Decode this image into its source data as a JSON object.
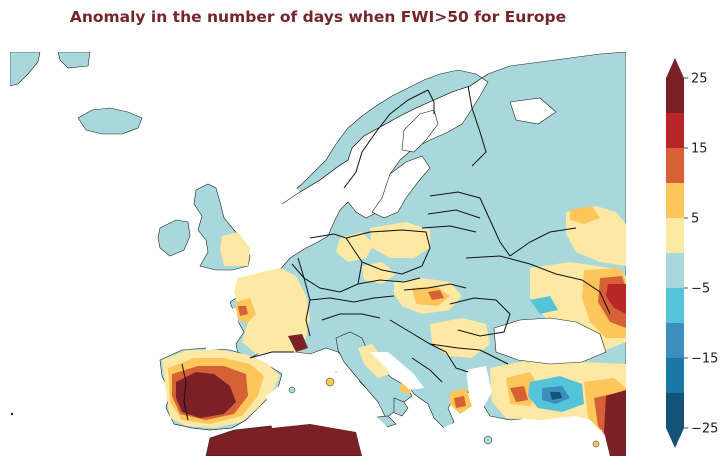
{
  "title": "Anomaly in the number of days when FWI>50 for Europe",
  "title_color": "#74262b",
  "colors": {
    "sea": "#ffffff",
    "land_neutral": "#a8d8dc",
    "border": "#111111"
  },
  "colorbar": {
    "extend": "both",
    "tick_labels": [
      "25",
      "15",
      "5",
      "−5",
      "−15",
      "−25"
    ],
    "bins": [
      {
        "lower": 20,
        "upper": 25,
        "color": "#7b2024"
      },
      {
        "lower": 15,
        "upper": 20,
        "color": "#b8262a"
      },
      {
        "lower": 10,
        "upper": 15,
        "color": "#d66137"
      },
      {
        "lower": 5,
        "upper": 10,
        "color": "#fcc65a"
      },
      {
        "lower": 0,
        "upper": 5,
        "color": "#fde8a4"
      },
      {
        "lower": -5,
        "upper": 0,
        "color": "#a8d8dc"
      },
      {
        "lower": -10,
        "upper": -5,
        "color": "#56c4d8"
      },
      {
        "lower": -15,
        "upper": -10,
        "color": "#3b8fbf"
      },
      {
        "lower": -20,
        "upper": -15,
        "color": "#1a78a6"
      },
      {
        "lower": -25,
        "upper": -20,
        "color": "#15527a"
      }
    ]
  }
}
